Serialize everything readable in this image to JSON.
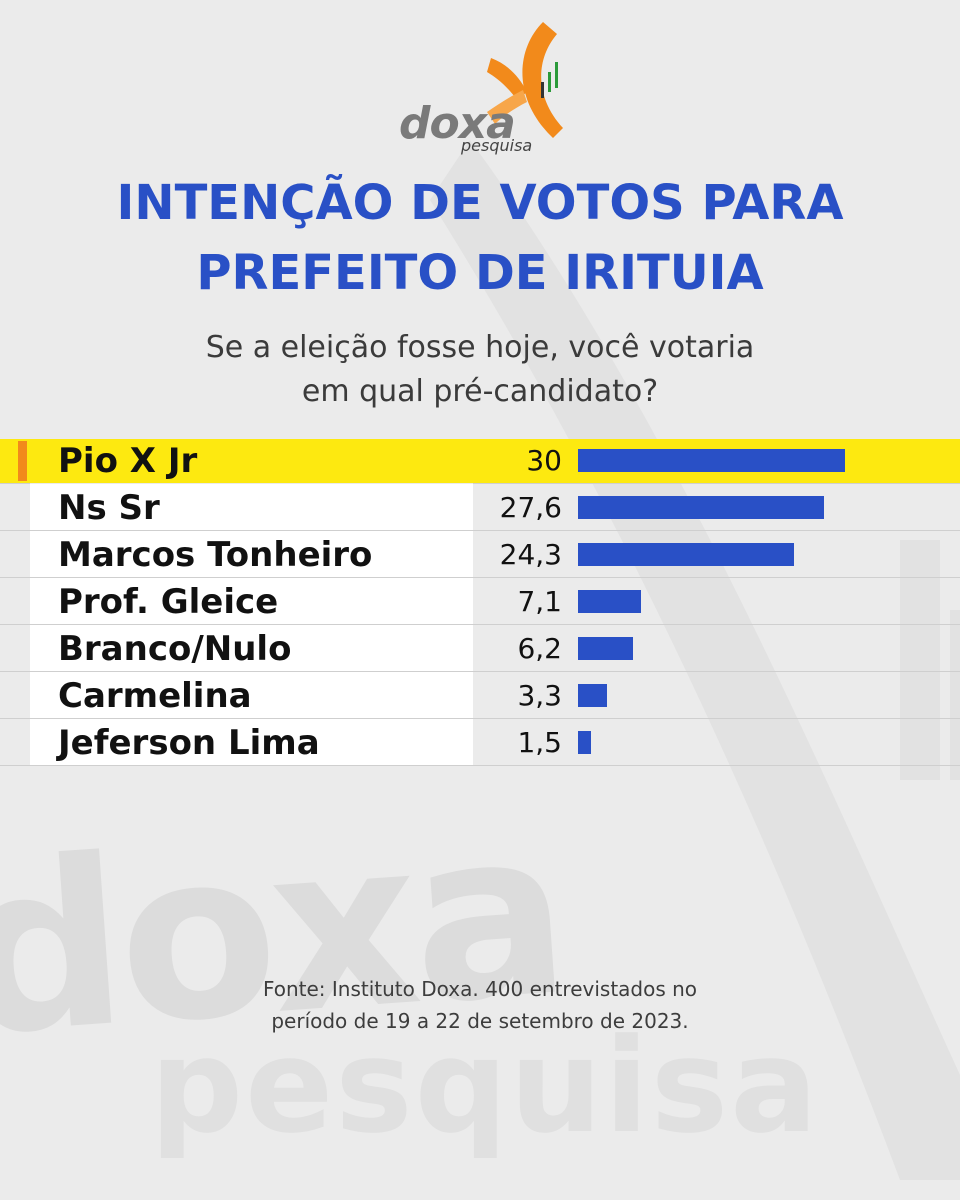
{
  "brand": {
    "name": "doxa",
    "sub": "pesquisa",
    "orange": "#f28a1b",
    "blue": "#2950c6",
    "highlight": "#fde910"
  },
  "title_lines": [
    "INTENÇÃO DE VOTOS PARA",
    "PREFEITO DE IRITUIA"
  ],
  "subtitle_lines": [
    "Se a eleição fosse hoje, você votaria",
    "em qual pré-candidato?"
  ],
  "chart_data": {
    "type": "bar",
    "orientation": "horizontal",
    "title": "INTENÇÃO DE VOTOS PARA PREFEITO DE IRITUIA",
    "categories": [
      "Pio X Jr",
      "Ns Sr",
      "Marcos Tonheiro",
      "Prof. Gleice",
      "Branco/Nulo",
      "Carmelina",
      "Jeferson Lima"
    ],
    "values": [
      30,
      27.6,
      24.3,
      7.1,
      6.2,
      3.3,
      1.5
    ],
    "value_labels": [
      "30",
      "27,6",
      "24,3",
      "7,1",
      "6,2",
      "3,3",
      "1,5"
    ],
    "highlighted": "Pio X Jr",
    "xlim": [
      0,
      30
    ],
    "bar_color": "#2950c6"
  },
  "source_lines": [
    "Fonte: Instituto Doxa. 400 entrevistados no",
    "período de 19 a 22 de setembro de 2023."
  ]
}
